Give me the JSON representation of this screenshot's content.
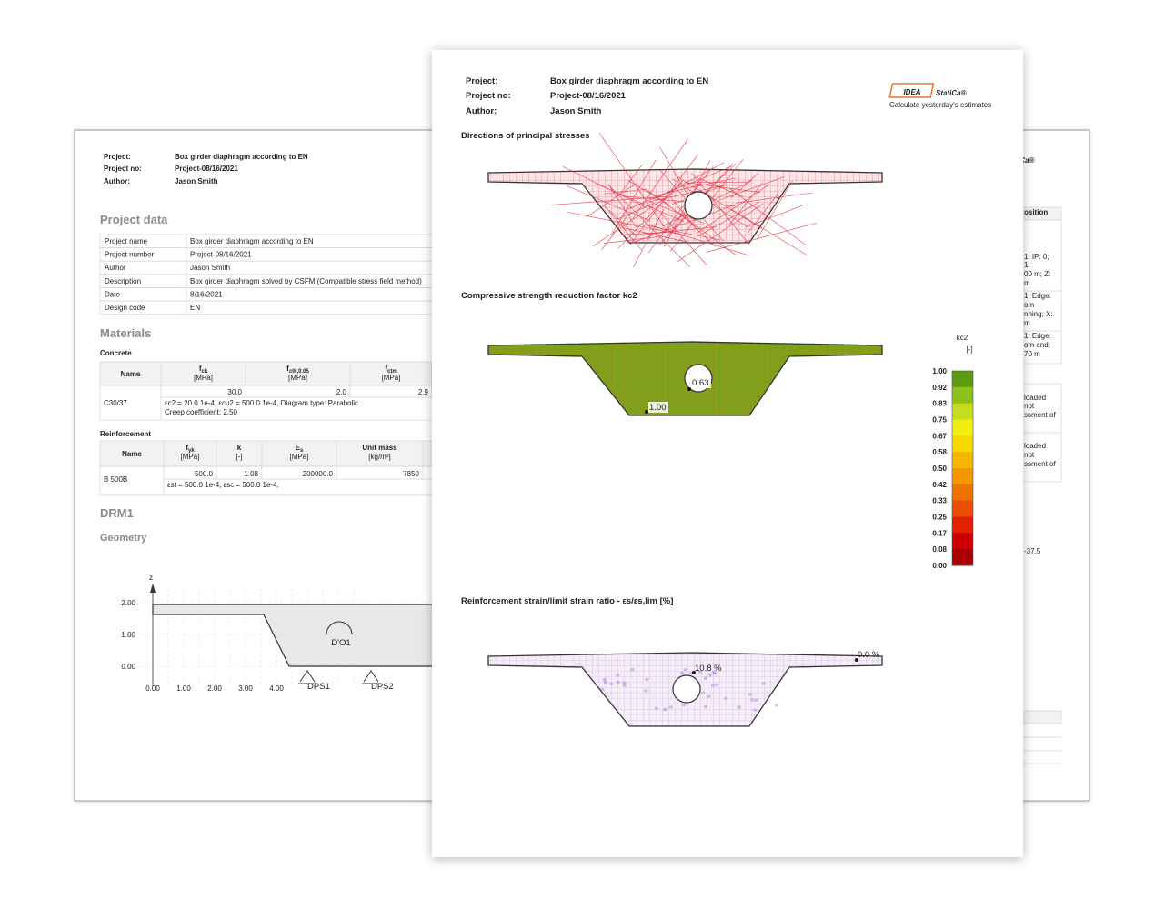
{
  "back_page": {
    "header": {
      "project_label": "Project:",
      "project": "Box girder diaphragm according to EN",
      "project_no_label": "Project no:",
      "project_no": "Project-08/16/2021",
      "author_label": "Author:",
      "author": "Jason Smith"
    },
    "project_data": {
      "title": "Project data",
      "rows": [
        [
          "Project name",
          "Box girder diaphragm according to EN"
        ],
        [
          "Project number",
          "Project-08/16/2021"
        ],
        [
          "Author",
          "Jason Smith"
        ],
        [
          "Description",
          "Box girder diaphragm solved by CSFM (Compatible stress field method)"
        ],
        [
          "Date",
          "8/16/2021"
        ],
        [
          "Design code",
          "EN"
        ]
      ]
    },
    "materials": {
      "title": "Materials",
      "concrete": {
        "title": "Concrete",
        "headers": [
          {
            "symbol": "Name"
          },
          {
            "symbol": "f",
            "sub": "ck",
            "unit": "[MPa]"
          },
          {
            "symbol": "f",
            "sub": "ctk,0.05",
            "unit": "[MPa]"
          },
          {
            "symbol": "f",
            "sub": "ctm",
            "unit": "[MPa]"
          }
        ],
        "name": "C30/37",
        "values": [
          "30.0",
          "2.0",
          "2.9"
        ],
        "notes": [
          "εc2 = 20.0 1e-4, εcu2 = 500.0 1e-4, Diagram type: Parabolic",
          "Creep coefficient: 2.50"
        ]
      },
      "reinforcement": {
        "title": "Reinforcement",
        "headers": [
          {
            "symbol": "Name"
          },
          {
            "symbol": "f",
            "sub": "yk",
            "unit": "[MPa]"
          },
          {
            "symbol": "k",
            "unit": "[-]"
          },
          {
            "symbol": "E",
            "sub": "s",
            "unit": "[MPa]"
          },
          {
            "symbol": "Unit mass",
            "unit": "[kg/m³]"
          }
        ],
        "name": "B 500B",
        "values": [
          "500.0",
          "1.08",
          "200000.0",
          "7850"
        ],
        "notes": [
          "εst = 500.0 1e-4, εsc = 500.0 1e-4,"
        ]
      }
    },
    "member": "DRM1",
    "geometry": {
      "title": "Geometry",
      "axis": "z",
      "yticks": [
        "0.00",
        "1.00",
        "2.00"
      ],
      "xticks": [
        "0.00",
        "1.00",
        "2.00",
        "3.00",
        "4.00"
      ],
      "labels": [
        "D'O1",
        "DPS1",
        "DPS2"
      ]
    }
  },
  "front_page": {
    "header": {
      "project_label": "Project:",
      "project": "Box girder diaphragm according to EN",
      "project_no_label": "Project no:",
      "project_no": "Project-08/16/2021",
      "author_label": "Author:",
      "author": "Jason Smith"
    },
    "logo": {
      "mark": "IDEA",
      "name": "StatiCa®",
      "tagline": "Calculate yesterday's estimates"
    },
    "sections": [
      {
        "title": "Directions of principal stresses"
      },
      {
        "title": "Compressive strength reduction factor kc2",
        "labels": [
          "0.63",
          "1.00"
        ],
        "legend": {
          "title": "kc2",
          "unit": "[-]",
          "ticks": [
            "1.00",
            "0.92",
            "0.83",
            "0.75",
            "0.67",
            "0.58",
            "0.50",
            "0.42",
            "0.33",
            "0.25",
            "0.17",
            "0.08",
            "0.00"
          ],
          "colors": [
            "#5c9c0c",
            "#8dc01c",
            "#c6dc22",
            "#f2ee12",
            "#f8d600",
            "#f6b600",
            "#f39600",
            "#ee7200",
            "#ea4c00",
            "#e02200",
            "#cc0000",
            "#a60000"
          ]
        }
      },
      {
        "title": "Reinforcement strain/limit strain ratio - εs/εs,lim [%]",
        "labels": [
          "10.8 %",
          "0.0 %"
        ]
      }
    ]
  },
  "right_page": {
    "fragments": [
      "atiCa®",
      "osition",
      "1; IP: 0;",
      "1;",
      "00 m; Z:",
      "m",
      "1; Edge:",
      "om",
      "nning; X:",
      "m",
      "1; Edge:",
      "om end;",
      "70 m",
      "loaded",
      "not",
      "ssment of",
      "loaded",
      "not",
      "ssment of",
      "-37.5"
    ]
  }
}
